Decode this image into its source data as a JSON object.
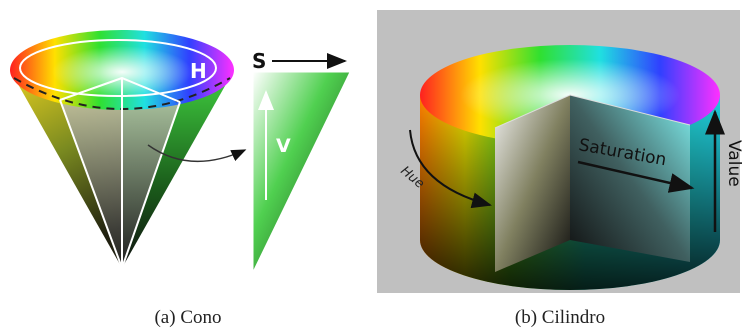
{
  "figures": [
    {
      "labels": [
        "H",
        "S",
        "V"
      ],
      "caption": "(a) Cono"
    },
    {
      "labels": [
        "Hue",
        "Saturation",
        "Value"
      ],
      "caption": "(b) Cilindro"
    }
  ]
}
